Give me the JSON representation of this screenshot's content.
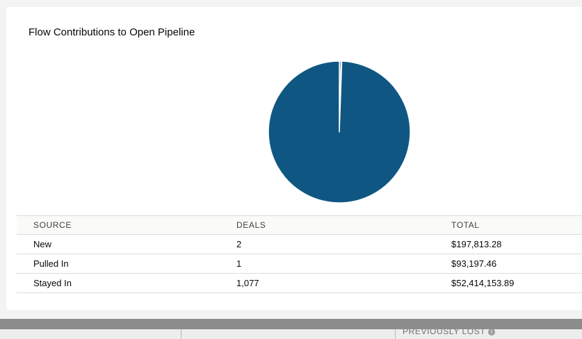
{
  "card": {
    "title": "Flow Contributions to Open Pipeline"
  },
  "table": {
    "headers": [
      "SOURCE",
      "DEALS",
      "TOTAL"
    ],
    "rows": [
      {
        "source": "New",
        "deals": "2",
        "total": "$197,813.28"
      },
      {
        "source": "Pulled In",
        "deals": "1",
        "total": "$93,197.46"
      },
      {
        "source": "Stayed In",
        "deals": "1,077",
        "total": "$52,414,153.89"
      }
    ]
  },
  "bottom": {
    "previously_lost_label": "PREVIOUSLY LOST",
    "info_icon": "i"
  },
  "colors": {
    "pie_fill": "#0f5782",
    "slice_gap": "#ffffff"
  },
  "chart_data": {
    "type": "pie",
    "categories": [
      "New",
      "Pulled In",
      "Stayed In"
    ],
    "values": [
      197813.28,
      93197.46,
      52414153.89
    ]
  }
}
